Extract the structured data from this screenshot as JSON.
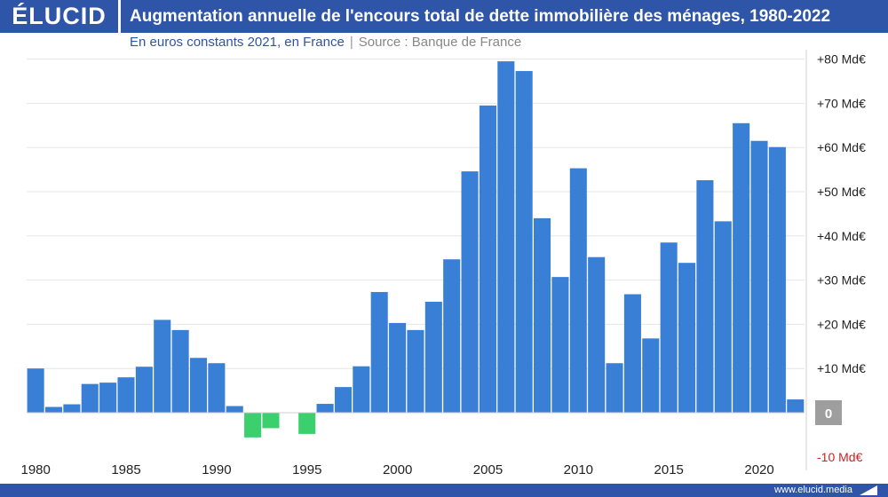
{
  "header": {
    "logo": "ÉLUCID",
    "title": "Augmentation annuelle de l'encours total de dette immobilière des ménages, 1980-2022"
  },
  "subtitle": {
    "main": "En euros constants 2021, en France",
    "separator": "|",
    "source": "Source : Banque de France"
  },
  "footer": {
    "url": "www.elucid.media"
  },
  "colors": {
    "brand": "#2e55a7",
    "positive_bar": "#3a7fd6",
    "negative_bar": "#3ccf6e",
    "zero_label_bg": "#9e9e9e",
    "negative_tick": "#cc2222"
  },
  "chart_data": {
    "type": "bar",
    "x": [
      1980,
      1981,
      1982,
      1983,
      1984,
      1985,
      1986,
      1987,
      1988,
      1989,
      1990,
      1991,
      1992,
      1993,
      1994,
      1995,
      1996,
      1997,
      1998,
      1999,
      2000,
      2001,
      2002,
      2003,
      2004,
      2005,
      2006,
      2007,
      2008,
      2009,
      2010,
      2011,
      2012,
      2013,
      2014,
      2015,
      2016,
      2017,
      2018,
      2019,
      2020,
      2021,
      2022
    ],
    "values": [
      10,
      1.3,
      1.9,
      6.5,
      6.8,
      8,
      10.4,
      21,
      18.7,
      12.4,
      11.2,
      1.5,
      -5.6,
      -3.5,
      0,
      -4.8,
      2,
      5.8,
      10.5,
      27.3,
      20.3,
      18.7,
      25.1,
      34.7,
      54.6,
      69.5,
      79.5,
      77.3,
      44,
      30.7,
      55.3,
      35.2,
      11.2,
      26.8,
      16.8,
      38.5,
      33.9,
      52.6,
      43.3,
      65.5,
      61.5,
      60.1,
      3
    ],
    "xtick_labels": [
      "1980",
      "1985",
      "1990",
      "1995",
      "2000",
      "2005",
      "2010",
      "2015",
      "2020"
    ],
    "ytick_labels": [
      "+80 Md€",
      "+70 Md€",
      "+60 Md€",
      "+50 Md€",
      "+40 Md€",
      "+30 Md€",
      "+20 Md€",
      "+10 Md€",
      "0",
      "-10 Md€"
    ],
    "ytick_values": [
      80,
      70,
      60,
      50,
      40,
      30,
      20,
      10,
      0,
      -10
    ],
    "ylim": [
      -10,
      80
    ],
    "grid": true,
    "legend": "none",
    "yaxis_position": "right"
  }
}
